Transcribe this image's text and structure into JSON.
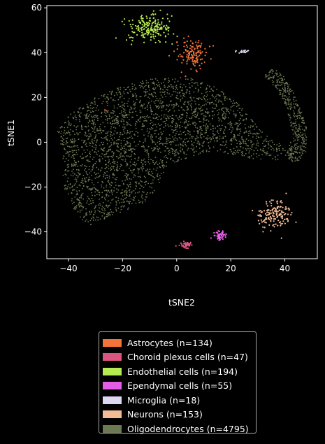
{
  "chart_data": {
    "type": "scatter",
    "xlabel": "tSNE2",
    "ylabel": "tSNE1",
    "xlim": [
      -48,
      52
    ],
    "ylim": [
      -52,
      61
    ],
    "xticks": [
      -40,
      -20,
      0,
      20,
      40
    ],
    "yticks": [
      60,
      40,
      20,
      0,
      -20,
      -40
    ],
    "grid": false,
    "legend_position": "below",
    "series": [
      {
        "name": "Astrocytes (n=134)",
        "color": "#f4733a",
        "count": 134,
        "clusters": [
          {
            "cx": 6,
            "cy": 39.5,
            "sx": 2.5,
            "sy": 3.0
          }
        ]
      },
      {
        "name": "Choroid plexus cells (n=47)",
        "color": "#d9547e",
        "count": 47,
        "clusters": [
          {
            "cx": 3.5,
            "cy": -45.8,
            "sx": 1.2,
            "sy": 0.6
          }
        ]
      },
      {
        "name": "Endothelial cells (n=194)",
        "color": "#b6ea52",
        "count": 194,
        "clusters": [
          {
            "cx": -9.5,
            "cy": 51,
            "sx": 4.0,
            "sy": 3.0
          }
        ]
      },
      {
        "name": "Ependymal cells (n=55)",
        "color": "#e55de6",
        "count": 55,
        "clusters": [
          {
            "cx": 16,
            "cy": -41.5,
            "sx": 1.2,
            "sy": 1.0
          }
        ]
      },
      {
        "name": "Microglia (n=18)",
        "color": "#dcd8f3",
        "count": 18,
        "clusters": [
          {
            "cx": 24.5,
            "cy": 40.5,
            "sx": 1.5,
            "sy": 0.3
          }
        ]
      },
      {
        "name": "Neurons (n=153)",
        "color": "#f3bb95",
        "count": 153,
        "clusters": [
          {
            "cx": 36,
            "cy": -32,
            "sx": 3.0,
            "sy": 3.0
          }
        ]
      },
      {
        "name": "Oligodendrocytes (n=4795)",
        "color": "#6b7a52",
        "count": 4795,
        "clusters": []
      }
    ]
  }
}
